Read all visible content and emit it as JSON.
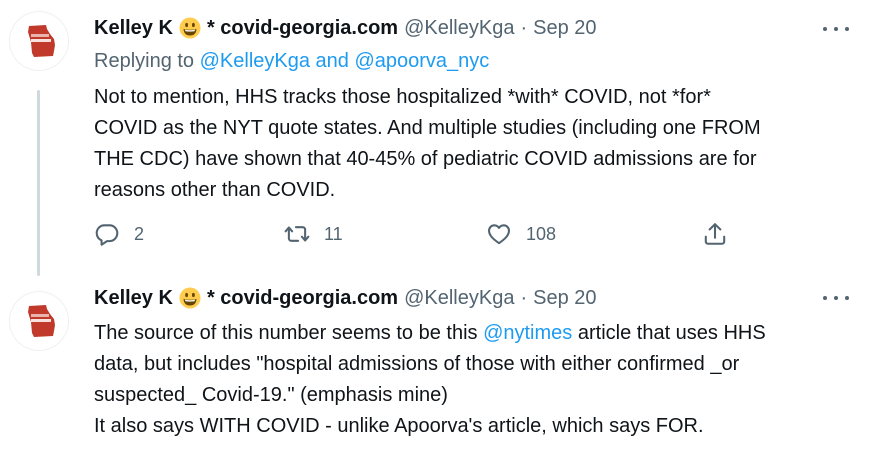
{
  "tweets": [
    {
      "name": "Kelley K",
      "name_suffix": "* covid-georgia.com",
      "handle": "@KelleyKga",
      "separator": "·",
      "date": "Sep 20",
      "replying_prefix": "Replying to",
      "replying_handles": "@KelleyKga and @apoorva_nyc",
      "lines": [
        "Not to mention, HHS tracks those hospitalized *with* COVID, not *for*",
        "COVID as the NYT quote states. And multiple studies (including one FROM",
        "THE CDC) have shown that 40-45% of pediatric COVID admissions are for",
        "reasons other than COVID."
      ],
      "reply_count": "2",
      "retweet_count": "11",
      "like_count": "108"
    },
    {
      "name": "Kelley K",
      "name_suffix": "* covid-georgia.com",
      "handle": "@KelleyKga",
      "separator": "·",
      "date": "Sep 20",
      "line1_before": "The source of this number seems to be this ",
      "line1_link": "@nytimes",
      "line1_after": " article that uses HHS",
      "lines": [
        "data, but includes \"hospital admissions of those with either confirmed _or",
        "suspected_ Covid-19.\" (emphasis mine)",
        "It also says WITH COVID - unlike Apoorva's article, which says FOR."
      ]
    }
  ],
  "icons": {
    "emoji": "grinning-face-icon",
    "avatar": "georgia-map-logo",
    "more": "more-options-icon",
    "reply": "reply-icon",
    "retweet": "retweet-icon",
    "like": "heart-icon",
    "share": "share-icon"
  },
  "colors": {
    "text": "#0f1419",
    "secondary": "#536471",
    "link": "#1d9bf0",
    "thread_line": "#cfd9de",
    "avatar_red": "#c0392b"
  }
}
